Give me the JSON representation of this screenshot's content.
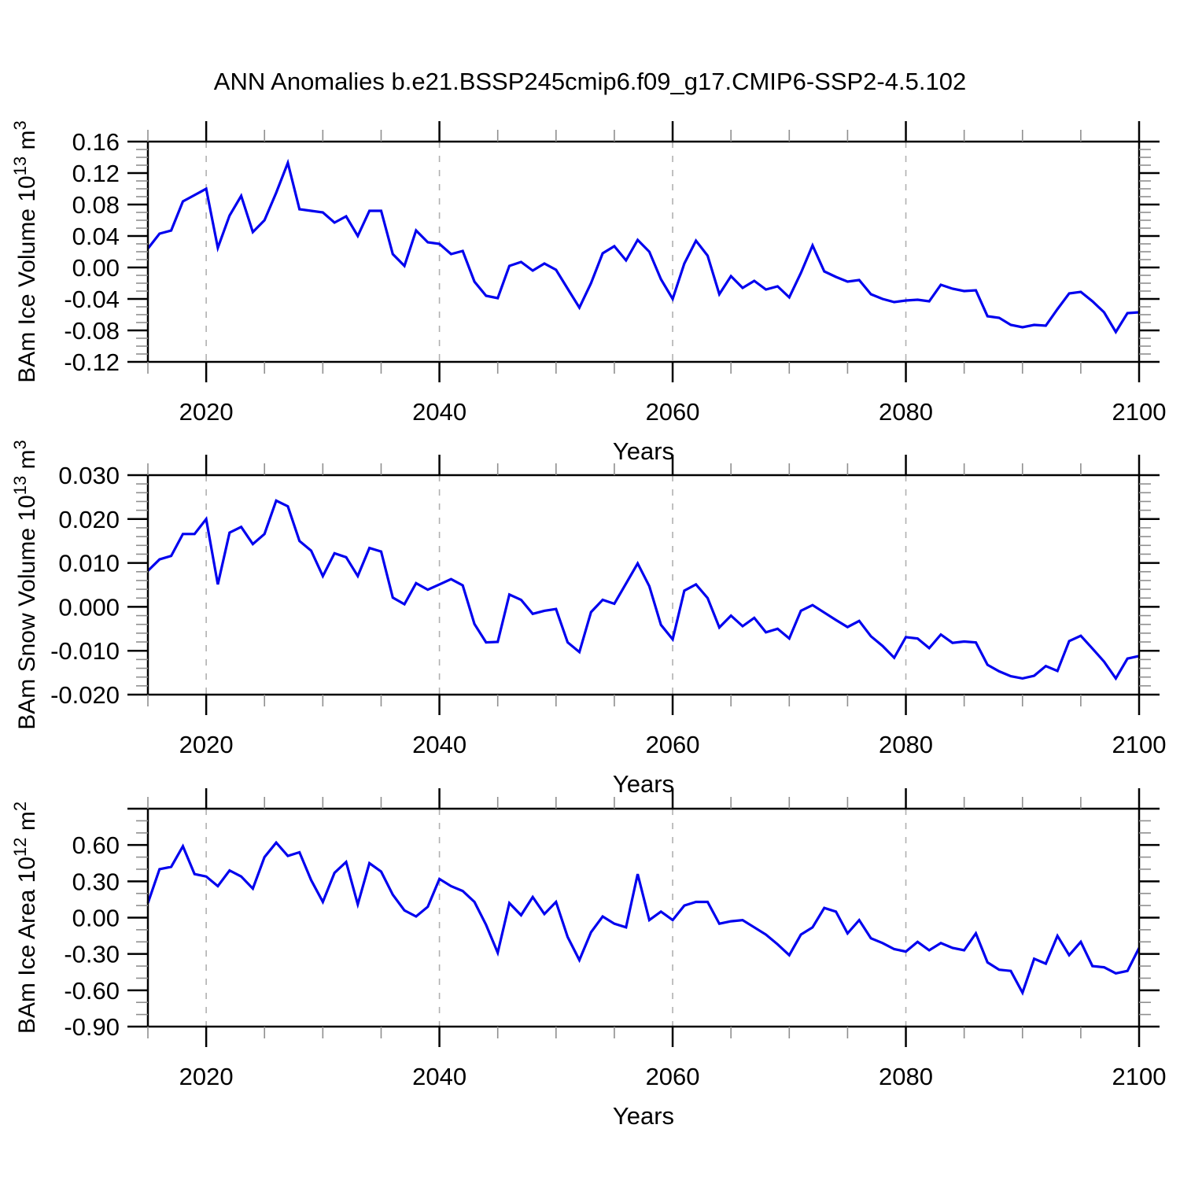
{
  "title": "ANN Anomalies b.e21.BSSP245cmip6.f09_g17.CMIP6-SSP2-4.5.102",
  "line_color": "#0000EE",
  "chart_data": [
    {
      "type": "line",
      "name": "bam-ice-volume",
      "ylabel": "BAm Ice Volume 10^13 m^3",
      "ylabel_parts": [
        [
          "t",
          "BAm Ice Volume 10"
        ],
        [
          "s",
          "13"
        ],
        [
          "t",
          " m"
        ],
        [
          "s",
          "3"
        ]
      ],
      "xlabel": "Years",
      "x": {
        "start": 2015,
        "end": 2100,
        "step": 1
      },
      "xticks_major": [
        2020,
        2040,
        2060,
        2080,
        2100
      ],
      "xtick_labels": [
        "2020",
        "2040",
        "2060",
        "2080",
        "2100"
      ],
      "xtick_minor_step": 5,
      "gridline_years": [
        2020,
        2040,
        2060,
        2080
      ],
      "ylim": [
        -0.12,
        0.16
      ],
      "ytick_values": [
        0.16,
        0.12,
        0.08,
        0.04,
        0.0,
        -0.04,
        -0.08,
        -0.12
      ],
      "ytick_labels": [
        "0.16",
        "0.12",
        "0.08",
        "0.04",
        "0.00",
        "-0.04",
        "-0.08",
        "-0.12"
      ],
      "ytick_minor_step": 0.01,
      "grid": "vertical-dashed",
      "legend": "none",
      "values": [
        0.024,
        0.043,
        0.047,
        0.084,
        0.092,
        0.1,
        0.025,
        0.066,
        0.091,
        0.045,
        0.06,
        0.095,
        0.133,
        0.074,
        0.072,
        0.07,
        0.057,
        0.065,
        0.04,
        0.072,
        0.072,
        0.017,
        0.002,
        0.047,
        0.032,
        0.03,
        0.017,
        0.021,
        -0.018,
        -0.036,
        -0.039,
        0.002,
        0.007,
        -0.004,
        0.005,
        -0.003,
        -0.027,
        -0.051,
        -0.02,
        0.018,
        0.027,
        0.009,
        0.035,
        0.02,
        -0.015,
        -0.04,
        0.005,
        0.034,
        0.015,
        -0.034,
        -0.011,
        -0.026,
        -0.017,
        -0.028,
        -0.024,
        -0.038,
        -0.007,
        0.028,
        -0.005,
        -0.012,
        -0.018,
        -0.016,
        -0.034,
        -0.04,
        -0.044,
        -0.042,
        -0.041,
        -0.043,
        -0.022,
        -0.027,
        -0.03,
        -0.029,
        -0.062,
        -0.064,
        -0.073,
        -0.076,
        -0.073,
        -0.074,
        -0.053,
        -0.033,
        -0.031,
        -0.043,
        -0.057,
        -0.082,
        -0.058,
        -0.057
      ]
    },
    {
      "type": "line",
      "name": "bam-snow-volume",
      "ylabel": "BAm Snow Volume 10^13 m^3",
      "ylabel_parts": [
        [
          "t",
          "BAm Snow Volume 10"
        ],
        [
          "s",
          "13"
        ],
        [
          "t",
          " m"
        ],
        [
          "s",
          "3"
        ]
      ],
      "xlabel": "Years",
      "x": {
        "start": 2015,
        "end": 2100,
        "step": 1
      },
      "xticks_major": [
        2020,
        2040,
        2060,
        2080,
        2100
      ],
      "xtick_labels": [
        "2020",
        "2040",
        "2060",
        "2080",
        "2100"
      ],
      "xtick_minor_step": 5,
      "gridline_years": [
        2020,
        2040,
        2060,
        2080
      ],
      "ylim": [
        -0.02,
        0.03
      ],
      "ytick_values": [
        0.03,
        0.02,
        0.01,
        0.0,
        -0.01,
        -0.02
      ],
      "ytick_labels": [
        "0.030",
        "0.020",
        "0.010",
        "0.000",
        "-0.010",
        "-0.020"
      ],
      "ytick_minor_step": 0.002,
      "grid": "vertical-dashed",
      "legend": "none",
      "values": [
        0.0082,
        0.0108,
        0.0116,
        0.0166,
        0.0166,
        0.02,
        0.0051,
        0.0169,
        0.0182,
        0.0143,
        0.0166,
        0.0242,
        0.0229,
        0.015,
        0.0128,
        0.007,
        0.0122,
        0.0113,
        0.007,
        0.0134,
        0.0126,
        0.0021,
        0.0006,
        0.0054,
        0.0039,
        0.0051,
        0.0063,
        0.0049,
        -0.0039,
        -0.0081,
        -0.008,
        0.0028,
        0.0016,
        -0.0016,
        -0.0009,
        -0.0005,
        -0.0081,
        -0.0103,
        -0.0012,
        0.0016,
        0.0007,
        0.0053,
        0.0099,
        0.0047,
        -0.0041,
        -0.0074,
        0.0037,
        0.0051,
        0.002,
        -0.0047,
        -0.002,
        -0.0044,
        -0.0025,
        -0.0058,
        -0.005,
        -0.0072,
        -0.0009,
        0.0004,
        -0.0013,
        -0.003,
        -0.0046,
        -0.0032,
        -0.0067,
        -0.0089,
        -0.0116,
        -0.0069,
        -0.0072,
        -0.0094,
        -0.0063,
        -0.0082,
        -0.0079,
        -0.0081,
        -0.0132,
        -0.0147,
        -0.0158,
        -0.0163,
        -0.0157,
        -0.0135,
        -0.0146,
        -0.0078,
        -0.0066,
        -0.0095,
        -0.0125,
        -0.0163,
        -0.0118,
        -0.0112
      ]
    },
    {
      "type": "line",
      "name": "bam-ice-area",
      "ylabel": "BAm Ice Area 10^12 m^2",
      "ylabel_parts": [
        [
          "t",
          "BAm Ice Area 10"
        ],
        [
          "s",
          "12"
        ],
        [
          "t",
          " m"
        ],
        [
          "s",
          "2"
        ]
      ],
      "xlabel": "Years",
      "x": {
        "start": 2015,
        "end": 2100,
        "step": 1
      },
      "xticks_major": [
        2020,
        2040,
        2060,
        2080,
        2100
      ],
      "xtick_labels": [
        "2020",
        "2040",
        "2060",
        "2080",
        "2100"
      ],
      "xtick_minor_step": 5,
      "gridline_years": [
        2020,
        2040,
        2060,
        2080
      ],
      "ylim": [
        -0.9,
        0.9
      ],
      "ytick_values": [
        0.9,
        0.6,
        0.3,
        0.0,
        -0.3,
        -0.6,
        -0.9
      ],
      "ytick_labels": [
        "",
        "0.60",
        "0.30",
        "0.00",
        "-0.30",
        "-0.60",
        "-0.90"
      ],
      "ytick_minor_step": 0.1,
      "grid": "vertical-dashed",
      "legend": "none",
      "values": [
        0.12,
        0.4,
        0.42,
        0.59,
        0.36,
        0.34,
        0.26,
        0.39,
        0.34,
        0.24,
        0.5,
        0.62,
        0.51,
        0.54,
        0.31,
        0.13,
        0.37,
        0.46,
        0.11,
        0.45,
        0.38,
        0.19,
        0.06,
        0.01,
        0.09,
        0.32,
        0.26,
        0.22,
        0.13,
        -0.06,
        -0.29,
        0.12,
        0.02,
        0.17,
        0.03,
        0.13,
        -0.16,
        -0.35,
        -0.12,
        0.01,
        -0.05,
        -0.08,
        0.36,
        -0.02,
        0.05,
        -0.02,
        0.1,
        0.13,
        0.13,
        -0.05,
        -0.03,
        -0.02,
        -0.08,
        -0.14,
        -0.22,
        -0.31,
        -0.14,
        -0.08,
        0.08,
        0.05,
        -0.13,
        -0.02,
        -0.17,
        -0.21,
        -0.26,
        -0.28,
        -0.2,
        -0.27,
        -0.21,
        -0.25,
        -0.27,
        -0.13,
        -0.37,
        -0.43,
        -0.44,
        -0.62,
        -0.34,
        -0.38,
        -0.15,
        -0.31,
        -0.2,
        -0.4,
        -0.41,
        -0.46,
        -0.44,
        -0.25
      ]
    }
  ]
}
